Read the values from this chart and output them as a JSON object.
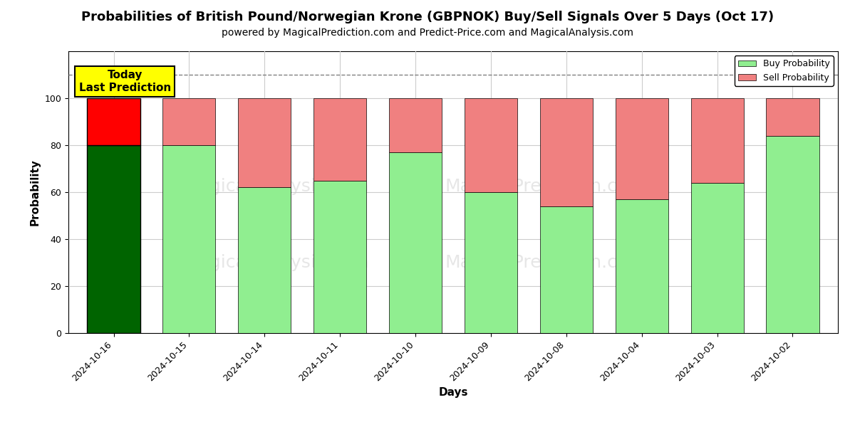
{
  "title": "Probabilities of British Pound/Norwegian Krone (GBPNOK) Buy/Sell Signals Over 5 Days (Oct 17)",
  "subtitle": "powered by MagicalPrediction.com and Predict-Price.com and MagicalAnalysis.com",
  "xlabel": "Days",
  "ylabel": "Probability",
  "days": [
    "2024-10-16",
    "2024-10-15",
    "2024-10-14",
    "2024-10-11",
    "2024-10-10",
    "2024-10-09",
    "2024-10-08",
    "2024-10-04",
    "2024-10-03",
    "2024-10-02"
  ],
  "buy_values": [
    80,
    80,
    62,
    65,
    77,
    60,
    54,
    57,
    64,
    84
  ],
  "sell_values": [
    20,
    20,
    38,
    35,
    23,
    40,
    46,
    43,
    36,
    16
  ],
  "today_bar_buy_color": "#006400",
  "today_bar_sell_color": "#FF0000",
  "other_bar_buy_color": "#90EE90",
  "other_bar_sell_color": "#F08080",
  "today_annotation_bg": "#FFFF00",
  "today_annotation_text": "Today\nLast Prediction",
  "ylim": [
    0,
    120
  ],
  "dashed_line_y": 110,
  "legend_buy_label": "Buy Probability",
  "legend_sell_label": "Sell Probability",
  "fig_width": 12,
  "fig_height": 6,
  "bg_color": "#FFFFFF",
  "grid_color": "#CCCCCC",
  "title_fontsize": 13,
  "subtitle_fontsize": 10,
  "axis_label_fontsize": 11,
  "tick_fontsize": 9,
  "bar_width": 0.7
}
